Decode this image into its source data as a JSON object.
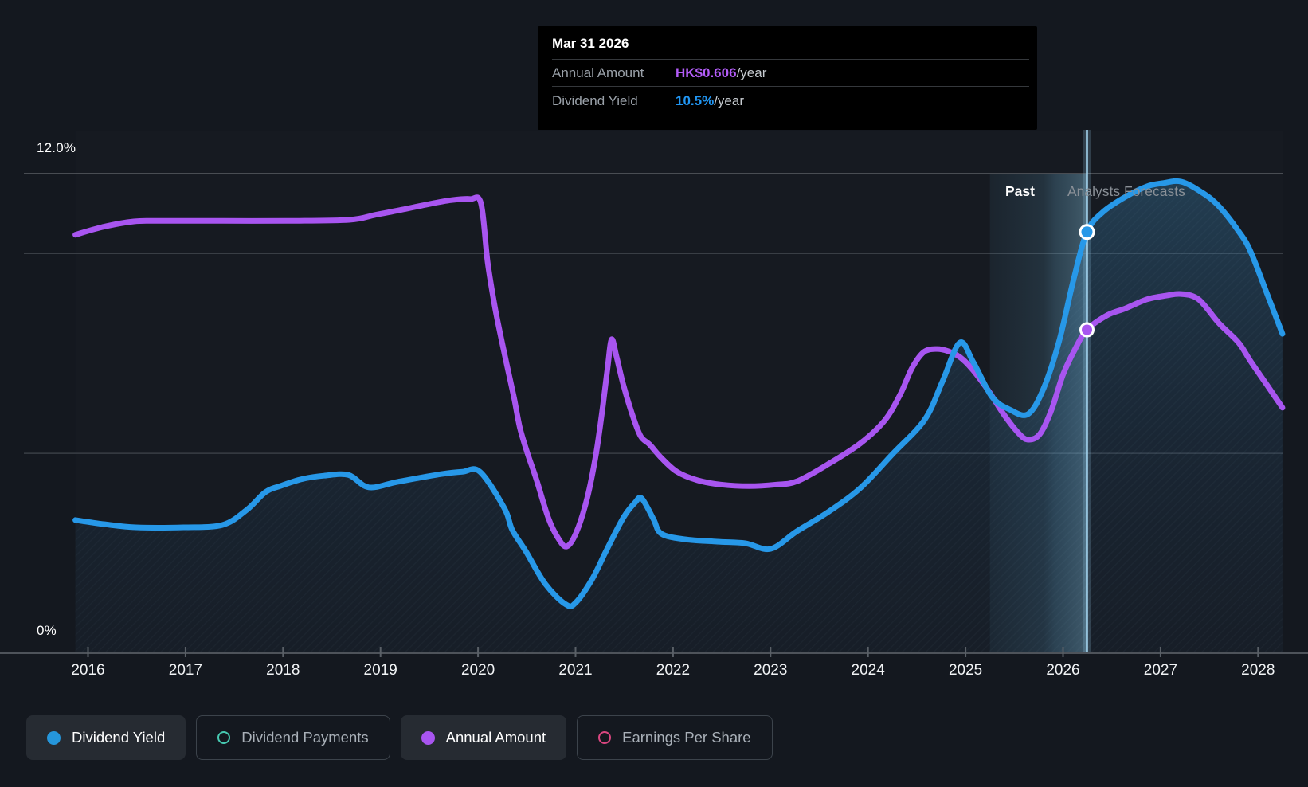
{
  "tooltip": {
    "date": "Mar 31 2026",
    "rows": [
      {
        "label": "Annual Amount",
        "value": "HK$0.606",
        "suffix": "/year",
        "value_color": "#b35cf8"
      },
      {
        "label": "Dividend Yield",
        "value": "10.5%",
        "suffix": "/year",
        "value_color": "#2196f3"
      }
    ]
  },
  "annotations": {
    "past": "Past",
    "forecast": "Analysts Forecasts"
  },
  "axes": {
    "y_top_label": "12.0%",
    "y_bottom_label": "0%",
    "years": [
      "2016",
      "2017",
      "2018",
      "2019",
      "2020",
      "2021",
      "2022",
      "2023",
      "2024",
      "2025",
      "2026",
      "2027",
      "2028"
    ]
  },
  "legend": [
    {
      "label": "Dividend Yield",
      "marker": "filled",
      "color": "#2596db",
      "active": true
    },
    {
      "label": "Dividend Payments",
      "marker": "outline",
      "color": "#47c9b1",
      "active": false
    },
    {
      "label": "Annual Amount",
      "marker": "filled",
      "color": "#a855f0",
      "active": true
    },
    {
      "label": "Earnings Per Share",
      "marker": "outline",
      "color": "#da4680",
      "active": false
    }
  ],
  "colors": {
    "background": "#14181f",
    "blue_line": "#2798e8",
    "purple_line": "#a855f0",
    "grid_major": "#5a5e64",
    "grid_minor": "#393e45",
    "axis": "#4e535a",
    "today_line": "#a8daf5",
    "band_glow": "#8ed0f1"
  },
  "chart_data": {
    "type": "line",
    "x_range": [
      2015.87,
      2028.25
    ],
    "grid_percent_lines": [
      12,
      10,
      5,
      0
    ],
    "past_band": {
      "from": 2025.25,
      "to": 2026.245
    },
    "today": 2026.245,
    "legend_position": "bottom",
    "series": [
      {
        "name": "Dividend Yield",
        "id": "dividend_yield",
        "axis": "pct",
        "unit": "%",
        "color": "#2798e8",
        "area_fill": true,
        "points": [
          [
            2015.87,
            3.33
          ],
          [
            2016.16,
            3.23
          ],
          [
            2016.49,
            3.15
          ],
          [
            2016.98,
            3.15
          ],
          [
            2017.38,
            3.21
          ],
          [
            2017.63,
            3.59
          ],
          [
            2017.82,
            4.03
          ],
          [
            2017.98,
            4.19
          ],
          [
            2018.2,
            4.36
          ],
          [
            2018.42,
            4.44
          ],
          [
            2018.67,
            4.46
          ],
          [
            2018.88,
            4.15
          ],
          [
            2019.18,
            4.29
          ],
          [
            2019.62,
            4.48
          ],
          [
            2019.84,
            4.54
          ],
          [
            2020.02,
            4.54
          ],
          [
            2020.27,
            3.63
          ],
          [
            2020.35,
            3.09
          ],
          [
            2020.49,
            2.55
          ],
          [
            2020.69,
            1.73
          ],
          [
            2020.9,
            1.22
          ],
          [
            2021.0,
            1.26
          ],
          [
            2021.17,
            1.85
          ],
          [
            2021.32,
            2.59
          ],
          [
            2021.49,
            3.39
          ],
          [
            2021.61,
            3.77
          ],
          [
            2021.68,
            3.87
          ],
          [
            2021.8,
            3.35
          ],
          [
            2021.88,
            2.99
          ],
          [
            2022.12,
            2.85
          ],
          [
            2022.45,
            2.79
          ],
          [
            2022.74,
            2.75
          ],
          [
            2023.0,
            2.61
          ],
          [
            2023.27,
            3.05
          ],
          [
            2023.59,
            3.53
          ],
          [
            2023.92,
            4.13
          ],
          [
            2024.25,
            4.98
          ],
          [
            2024.58,
            5.84
          ],
          [
            2024.76,
            6.78
          ],
          [
            2024.94,
            7.77
          ],
          [
            2025.08,
            7.28
          ],
          [
            2025.27,
            6.42
          ],
          [
            2025.45,
            6.1
          ],
          [
            2025.64,
            5.98
          ],
          [
            2025.8,
            6.62
          ],
          [
            2025.96,
            7.81
          ],
          [
            2026.11,
            9.37
          ],
          [
            2026.245,
            10.54
          ],
          [
            2026.41,
            11.04
          ],
          [
            2026.64,
            11.42
          ],
          [
            2026.86,
            11.68
          ],
          [
            2027.02,
            11.76
          ],
          [
            2027.21,
            11.8
          ],
          [
            2027.43,
            11.52
          ],
          [
            2027.6,
            11.18
          ],
          [
            2027.8,
            10.56
          ],
          [
            2027.92,
            10.07
          ],
          [
            2028.09,
            9.01
          ],
          [
            2028.25,
            7.99
          ]
        ]
      },
      {
        "name": "Annual Amount",
        "id": "annual_amount",
        "axis": "amt",
        "unit": "HK$",
        "color": "#a855f0",
        "area_fill": false,
        "points": [
          [
            2015.87,
            0.784
          ],
          [
            2016.16,
            0.799
          ],
          [
            2016.47,
            0.809
          ],
          [
            2016.73,
            0.81
          ],
          [
            2017.38,
            0.81
          ],
          [
            2018.04,
            0.81
          ],
          [
            2018.68,
            0.812
          ],
          [
            2018.94,
            0.821
          ],
          [
            2019.22,
            0.831
          ],
          [
            2019.51,
            0.842
          ],
          [
            2019.73,
            0.849
          ],
          [
            2019.92,
            0.851
          ],
          [
            2020.03,
            0.843
          ],
          [
            2020.1,
            0.731
          ],
          [
            2020.18,
            0.642
          ],
          [
            2020.29,
            0.545
          ],
          [
            2020.37,
            0.478
          ],
          [
            2020.43,
            0.422
          ],
          [
            2020.51,
            0.373
          ],
          [
            2020.6,
            0.325
          ],
          [
            2020.72,
            0.254
          ],
          [
            2020.82,
            0.216
          ],
          [
            2020.91,
            0.2
          ],
          [
            2021.01,
            0.227
          ],
          [
            2021.12,
            0.291
          ],
          [
            2021.21,
            0.373
          ],
          [
            2021.28,
            0.463
          ],
          [
            2021.33,
            0.537
          ],
          [
            2021.37,
            0.588
          ],
          [
            2021.42,
            0.556
          ],
          [
            2021.49,
            0.503
          ],
          [
            2021.59,
            0.443
          ],
          [
            2021.67,
            0.406
          ],
          [
            2021.76,
            0.391
          ],
          [
            2021.88,
            0.366
          ],
          [
            2022.04,
            0.34
          ],
          [
            2022.25,
            0.324
          ],
          [
            2022.49,
            0.316
          ],
          [
            2022.78,
            0.313
          ],
          [
            2023.06,
            0.316
          ],
          [
            2023.27,
            0.322
          ],
          [
            2023.59,
            0.354
          ],
          [
            2023.92,
            0.393
          ],
          [
            2024.17,
            0.436
          ],
          [
            2024.33,
            0.485
          ],
          [
            2024.45,
            0.534
          ],
          [
            2024.57,
            0.564
          ],
          [
            2024.7,
            0.57
          ],
          [
            2024.82,
            0.566
          ],
          [
            2024.94,
            0.555
          ],
          [
            2025.06,
            0.534
          ],
          [
            2025.23,
            0.493
          ],
          [
            2025.39,
            0.448
          ],
          [
            2025.54,
            0.413
          ],
          [
            2025.64,
            0.4
          ],
          [
            2025.76,
            0.41
          ],
          [
            2025.88,
            0.455
          ],
          [
            2026.0,
            0.522
          ],
          [
            2026.13,
            0.572
          ],
          [
            2026.245,
            0.606
          ],
          [
            2026.45,
            0.633
          ],
          [
            2026.64,
            0.646
          ],
          [
            2026.86,
            0.663
          ],
          [
            2027.06,
            0.67
          ],
          [
            2027.21,
            0.673
          ],
          [
            2027.39,
            0.663
          ],
          [
            2027.6,
            0.618
          ],
          [
            2027.8,
            0.582
          ],
          [
            2027.92,
            0.548
          ],
          [
            2028.09,
            0.503
          ],
          [
            2028.25,
            0.46
          ]
        ]
      }
    ],
    "markers": [
      {
        "series": "dividend_yield",
        "t": 2026.245,
        "value": 10.54,
        "radius": 8.5
      },
      {
        "series": "annual_amount",
        "t": 2026.245,
        "value": 0.606,
        "radius": 8
      }
    ]
  }
}
